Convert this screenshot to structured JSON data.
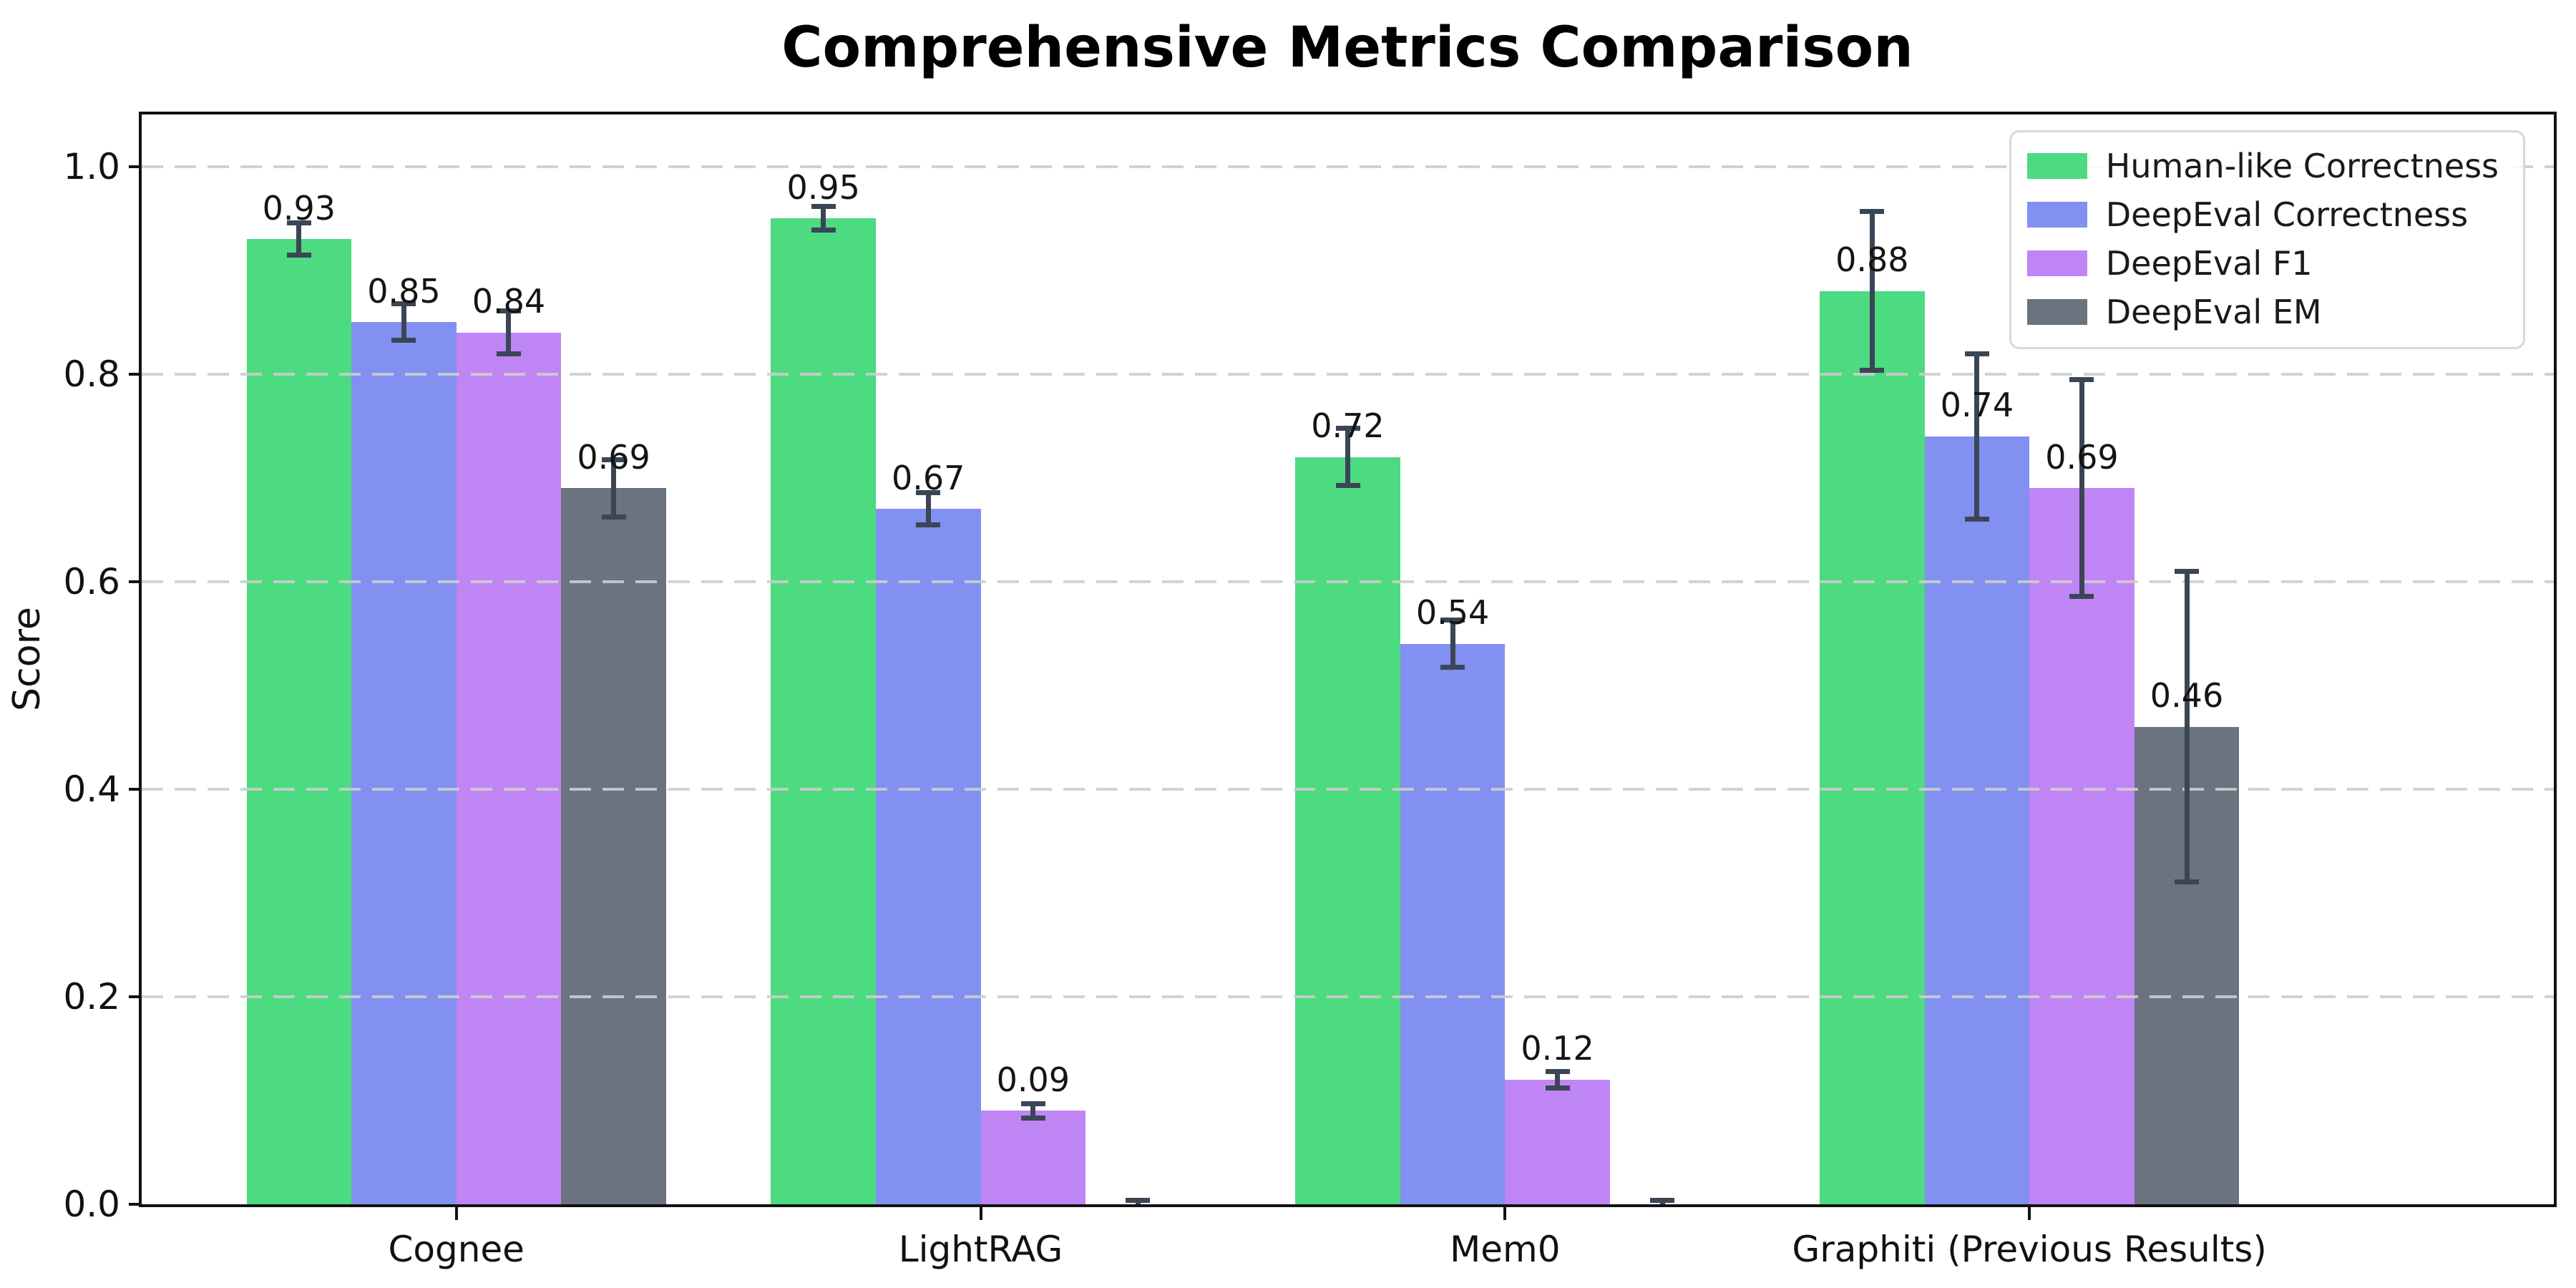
{
  "chart_data": {
    "type": "bar",
    "title": "Comprehensive Metrics Comparison",
    "ylabel": "Score",
    "xlabel": "",
    "categories": [
      "Cognee",
      "LightRAG",
      "Mem0",
      "Graphiti (Previous Results)"
    ],
    "series": [
      {
        "name": "Human-like Correctness",
        "color": "#4cdb81",
        "values": [
          0.93,
          0.95,
          0.72,
          0.88
        ],
        "errors": [
          0.016,
          0.012,
          0.028,
          0.077
        ],
        "bar_labels": [
          "0.93",
          "0.95",
          "0.72",
          "0.88"
        ]
      },
      {
        "name": "DeepEval Correctness",
        "color": "#8290f1",
        "values": [
          0.85,
          0.67,
          0.54,
          0.74
        ],
        "errors": [
          0.018,
          0.016,
          0.023,
          0.08
        ],
        "bar_labels": [
          "0.85",
          "0.67",
          "0.54",
          "0.74"
        ]
      },
      {
        "name": "DeepEval F1",
        "color": "#c085f4",
        "values": [
          0.84,
          0.09,
          0.12,
          0.69
        ],
        "errors": [
          0.021,
          0.007,
          0.008,
          0.105
        ],
        "bar_labels": [
          "0.84",
          "0.09",
          "0.12",
          "0.69"
        ]
      },
      {
        "name": "DeepEval EM",
        "color": "#6b7280",
        "values": [
          0.69,
          0.0,
          0.0,
          0.46
        ],
        "errors": [
          0.028,
          0.004,
          0.004,
          0.15
        ],
        "bar_labels": [
          "0.69",
          "",
          "",
          "0.46"
        ]
      }
    ],
    "yticks": [
      {
        "value": 0.0,
        "label": "0.0"
      },
      {
        "value": 0.2,
        "label": "0.2"
      },
      {
        "value": 0.4,
        "label": "0.4"
      },
      {
        "value": 0.6,
        "label": "0.6"
      },
      {
        "value": 0.8,
        "label": "0.8"
      },
      {
        "value": 1.0,
        "label": "1.0"
      }
    ],
    "ylim": [
      0,
      1.05
    ],
    "grid": "horizontal-dashed",
    "legend_position": "upper right",
    "error_bar_color": "#3a4656",
    "grid_color": "#cdcdcd",
    "spine_color": "#111111",
    "background_color": "#ffffff"
  }
}
